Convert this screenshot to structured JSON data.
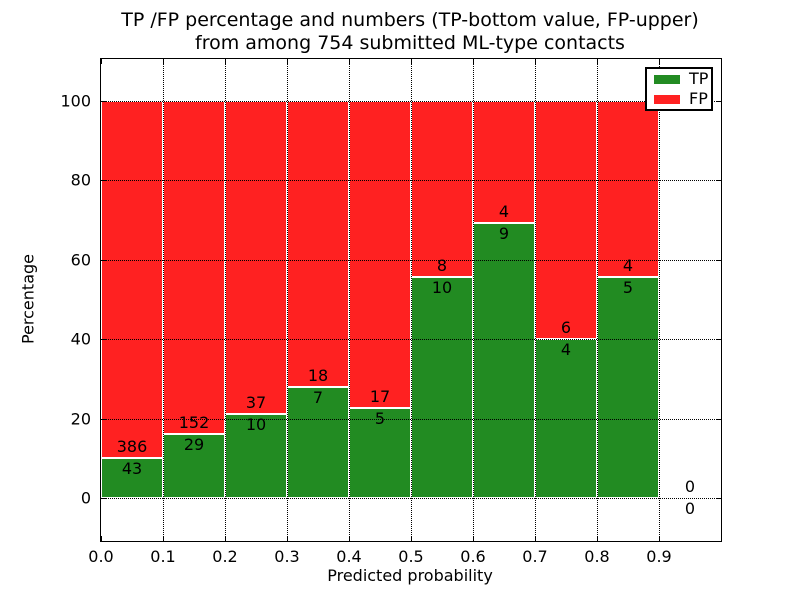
{
  "title": {
    "line1": "TP /FP percentage and numbers (TP-bottom value, FP-upper)",
    "line2": "from among 754 submitted ML-type contacts"
  },
  "axes": {
    "xlabel": "Predicted probability",
    "ylabel": "Percentage",
    "xtick_labels": [
      "0.0",
      "0.1",
      "0.2",
      "0.3",
      "0.4",
      "0.5",
      "0.6",
      "0.7",
      "0.8",
      "0.9"
    ],
    "ytick_labels": [
      "0",
      "20",
      "40",
      "60",
      "80",
      "100"
    ]
  },
  "legend": {
    "items": [
      {
        "label": "TP",
        "color": "#228B22"
      },
      {
        "label": "FP",
        "color": "#FF2121"
      }
    ]
  },
  "colors": {
    "tp": "#228B22",
    "fp": "#FF2121",
    "grid": "#000000",
    "bar_edge": "#FFFFFF",
    "background": "#FFFFFF",
    "text": "#000000"
  },
  "chart_data": {
    "type": "bar",
    "stacked": true,
    "normalized": "each bin scaled to 100%",
    "title": "TP /FP percentage and numbers (TP-bottom value, FP-upper)\nfrom among 754 submitted ML-type contacts",
    "xlabel": "Predicted probability",
    "ylabel": "Percentage",
    "total_contacts": 754,
    "bin_edges": [
      0.0,
      0.1,
      0.2,
      0.3,
      0.4,
      0.5,
      0.6,
      0.7,
      0.8,
      0.9,
      1.0
    ],
    "bin_labels": [
      "0.0-0.1",
      "0.1-0.2",
      "0.2-0.3",
      "0.3-0.4",
      "0.4-0.5",
      "0.5-0.6",
      "0.6-0.7",
      "0.7-0.8",
      "0.8-0.9",
      "0.9-1.0"
    ],
    "series": [
      {
        "name": "TP",
        "color": "#228B22",
        "counts": [
          43,
          29,
          10,
          7,
          5,
          10,
          9,
          4,
          5,
          0
        ]
      },
      {
        "name": "FP",
        "color": "#FF2121",
        "counts": [
          386,
          152,
          37,
          18,
          17,
          8,
          4,
          6,
          4,
          0
        ]
      }
    ],
    "tp_percent_per_bin": [
      10.0,
      16.0,
      21.3,
      28.0,
      22.7,
      55.6,
      69.2,
      40.0,
      55.6,
      0.0
    ],
    "xticks": [
      0.0,
      0.1,
      0.2,
      0.3,
      0.4,
      0.5,
      0.6,
      0.7,
      0.8,
      0.9
    ],
    "yticks": [
      0,
      20,
      40,
      60,
      80,
      100
    ],
    "xlim": [
      0.0,
      1.0
    ],
    "ylim": [
      -10.8,
      110.6
    ],
    "grid": "dotted black on both axes",
    "legend_position": "upper right"
  }
}
